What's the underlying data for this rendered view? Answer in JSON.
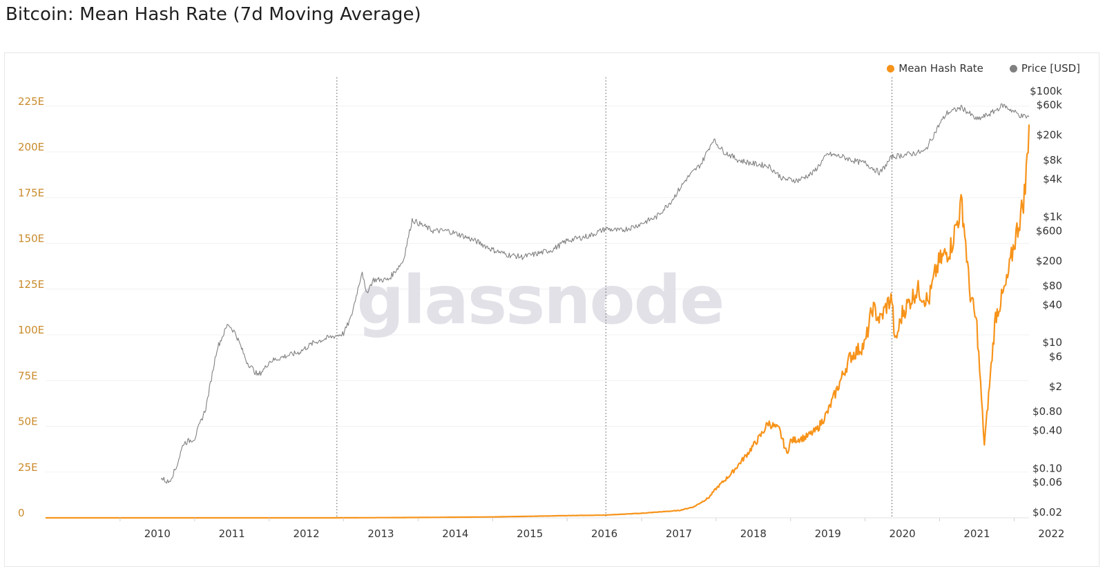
{
  "title": "Bitcoin: Mean Hash Rate (7d Moving Average)",
  "watermark": "glassnode",
  "legend": [
    {
      "label": "Mean Hash Rate",
      "color": "#f7931a"
    },
    {
      "label": "Price [USD]",
      "color": "#808080"
    }
  ],
  "chart_data": {
    "type": "line",
    "title": "Bitcoin: Mean Hash Rate (7d Moving Average)",
    "x_ticks": [
      "2010",
      "2011",
      "2012",
      "2013",
      "2014",
      "2015",
      "2016",
      "2017",
      "2018",
      "2019",
      "2020",
      "2021",
      "2022"
    ],
    "xlim": [
      2009.0,
      2022.2
    ],
    "left_axis": {
      "ticks": [
        "0",
        "25E",
        "50E",
        "75E",
        "100E",
        "125E",
        "150E",
        "175E",
        "200E",
        "225E"
      ],
      "values": [
        0,
        25,
        50,
        75,
        100,
        125,
        150,
        175,
        200,
        225
      ],
      "ylim": [
        0,
        237
      ],
      "unit": "EH/s"
    },
    "right_axis": {
      "ticks": [
        "$0.02",
        "$0.06",
        "$0.10",
        "$0.40",
        "$0.80",
        "$2",
        "$6",
        "$10",
        "$40",
        "$80",
        "$200",
        "$600",
        "$1k",
        "$4k",
        "$8k",
        "$20k",
        "$60k",
        "$100k"
      ],
      "values": [
        0.02,
        0.06,
        0.1,
        0.4,
        0.8,
        2,
        6,
        10,
        40,
        80,
        200,
        600,
        1000,
        4000,
        8000,
        20000,
        60000,
        100000
      ],
      "scale": "log",
      "ylim": [
        0.02,
        100000
      ]
    },
    "halvings": [
      2012.91,
      2016.52,
      2020.36
    ],
    "series": [
      {
        "name": "Mean Hash Rate",
        "axis": "left",
        "color": "#f7931a",
        "x": [
          2009.0,
          2011.0,
          2013.0,
          2014.0,
          2015.0,
          2016.0,
          2016.5,
          2017.0,
          2017.5,
          2017.7,
          2017.9,
          2018.0,
          2018.2,
          2018.4,
          2018.6,
          2018.7,
          2018.85,
          2018.95,
          2019.0,
          2019.2,
          2019.35,
          2019.5,
          2019.6,
          2019.8,
          2020.0,
          2020.1,
          2020.2,
          2020.3,
          2020.36,
          2020.4,
          2020.5,
          2020.7,
          2020.85,
          2020.95,
          2021.0,
          2021.15,
          2021.3,
          2021.35,
          2021.4,
          2021.5,
          2021.6,
          2021.75,
          2021.9,
          2022.0,
          2022.1,
          2022.15,
          2022.2
        ],
        "y": [
          0,
          0,
          0.02,
          0.2,
          0.5,
          1.2,
          1.5,
          2.5,
          4,
          6,
          11,
          16,
          24,
          34,
          45,
          52,
          48,
          35,
          42,
          44,
          48,
          58,
          68,
          88,
          95,
          115,
          108,
          117,
          120,
          95,
          112,
          125,
          118,
          135,
          140,
          148,
          172,
          150,
          125,
          105,
          40,
          110,
          128,
          150,
          168,
          180,
          215
        ]
      },
      {
        "name": "Price [USD]",
        "axis": "right",
        "color": "#808080",
        "x": [
          2010.55,
          2010.65,
          2010.75,
          2010.85,
          2011.0,
          2011.15,
          2011.3,
          2011.45,
          2011.55,
          2011.7,
          2011.85,
          2011.95,
          2012.0,
          2012.2,
          2012.4,
          2012.6,
          2012.8,
          2012.91,
          2013.0,
          2013.1,
          2013.25,
          2013.3,
          2013.4,
          2013.6,
          2013.8,
          2013.92,
          2014.0,
          2014.2,
          2014.4,
          2014.6,
          2014.8,
          2015.0,
          2015.2,
          2015.4,
          2015.6,
          2015.8,
          2016.0,
          2016.3,
          2016.52,
          2016.7,
          2016.9,
          2017.2,
          2017.4,
          2017.6,
          2017.8,
          2017.96,
          2018.1,
          2018.3,
          2018.5,
          2018.7,
          2018.9,
          2019.1,
          2019.3,
          2019.5,
          2019.7,
          2019.9,
          2020.0,
          2020.2,
          2020.36,
          2020.6,
          2020.8,
          2021.0,
          2021.1,
          2021.3,
          2021.5,
          2021.7,
          2021.85,
          2022.0,
          2022.1,
          2022.2
        ],
        "y": [
          0.07,
          0.06,
          0.1,
          0.25,
          0.3,
          0.9,
          8,
          20,
          14,
          5,
          3,
          4,
          5,
          6,
          7,
          10,
          12,
          13,
          14,
          25,
          140,
          60,
          100,
          100,
          200,
          900,
          800,
          600,
          600,
          500,
          400,
          300,
          250,
          230,
          260,
          300,
          420,
          500,
          650,
          600,
          700,
          1000,
          1800,
          4000,
          7000,
          17000,
          11000,
          8000,
          7000,
          6500,
          4000,
          3800,
          5000,
          10000,
          9000,
          7500,
          7200,
          5000,
          9000,
          10000,
          11000,
          30000,
          45000,
          55000,
          35000,
          45000,
          60000,
          47000,
          40000,
          39000
        ]
      }
    ]
  }
}
